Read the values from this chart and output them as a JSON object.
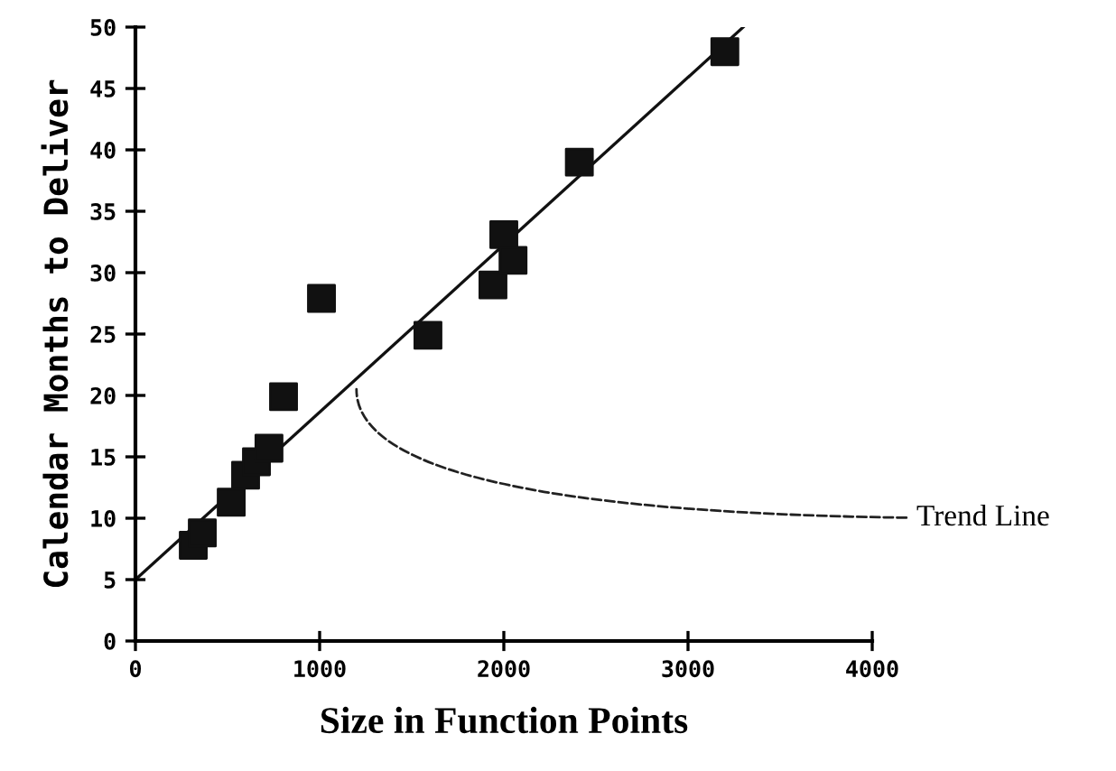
{
  "chart_data": {
    "type": "scatter",
    "xlabel": "Size in Function Points",
    "ylabel": "Calendar Months to Deliver",
    "xlim": [
      0,
      4000
    ],
    "ylim": [
      0,
      50
    ],
    "xticks": [
      0,
      1000,
      2000,
      3000,
      4000
    ],
    "yticks": [
      0,
      5,
      10,
      15,
      20,
      25,
      30,
      35,
      40,
      45,
      50
    ],
    "grid": false,
    "legend": false,
    "series": [
      {
        "marker": "square",
        "color": "#111111",
        "x": [
          314,
          363,
          520,
          598,
          657,
          725,
          804,
          1010,
          1588,
          1941,
          2000,
          2050,
          2410,
          3200
        ],
        "values": [
          7.8,
          8.8,
          11.3,
          13.5,
          14.6,
          15.7,
          19.9,
          27.9,
          24.9,
          29,
          33.1,
          31,
          39,
          48
        ]
      },
      {
        "type": "line",
        "marker": "none",
        "color": "#111111",
        "x": [
          0,
          3300
        ],
        "values": [
          5,
          50
        ]
      }
    ],
    "annotations": [
      {
        "text": "Trend Line",
        "x": 1200,
        "y": 20.5
      }
    ]
  }
}
